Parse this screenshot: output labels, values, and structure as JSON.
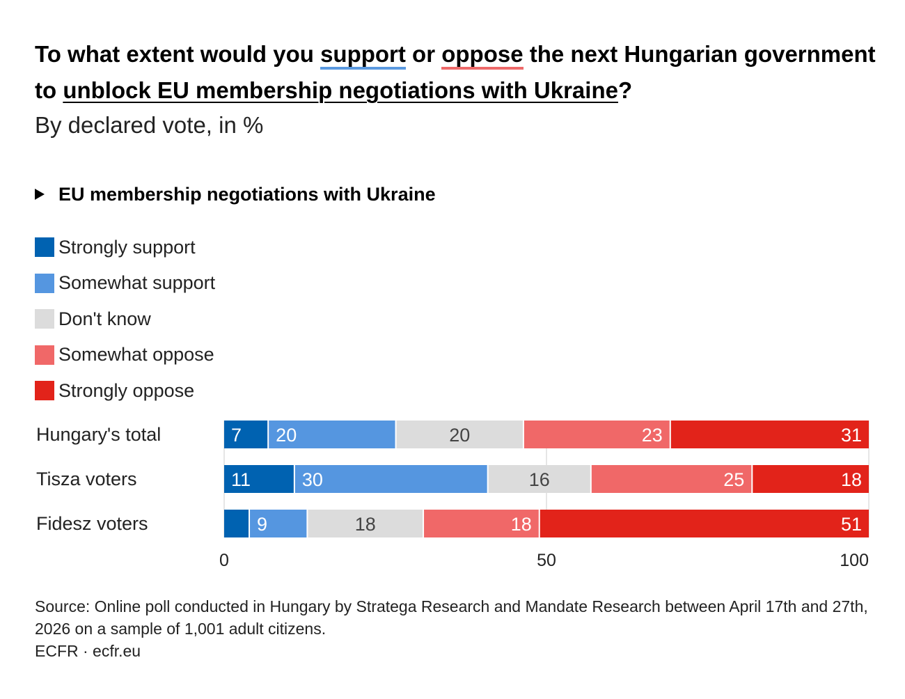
{
  "title": {
    "part1": "To what extent would you ",
    "support": "support",
    "part2": " or ",
    "oppose": "oppose",
    "part3": " the next Hungarian government to ",
    "topic": "unblock EU membership negotiations with Ukraine",
    "part4": "?"
  },
  "subtitle": "By declared vote, in %",
  "section_title": "EU membership negotiations with Ukraine",
  "source_line1": "Source: Online poll conducted in Hungary by Stratega Research and Mandate Research between April 17th and 27th, 2026 on a sample of 1,001 adult citizens.",
  "source_line2": "ECFR · ecfr.eu",
  "chart_data": {
    "type": "bar",
    "orientation": "horizontal",
    "stacked": true,
    "categories": [
      "Hungary's total",
      "Tisza voters",
      "Fidesz voters"
    ],
    "series": [
      {
        "name": "Strongly support",
        "color": "#0062b1",
        "values": [
          7,
          11,
          4
        ]
      },
      {
        "name": "Somewhat support",
        "color": "#5596e0",
        "values": [
          20,
          30,
          9
        ]
      },
      {
        "name": "Don't know",
        "color": "#dcdcdc",
        "values": [
          20,
          16,
          18
        ]
      },
      {
        "name": "Somewhat oppose",
        "color": "#f06868",
        "values": [
          23,
          25,
          18
        ]
      },
      {
        "name": "Strongly oppose",
        "color": "#e2231a",
        "values": [
          31,
          18,
          51
        ]
      }
    ],
    "data_labels": [
      [
        "7",
        "20",
        "20",
        "23",
        "31"
      ],
      [
        "11",
        "30",
        "16",
        "25",
        "18"
      ],
      [
        "",
        "9",
        "18",
        "18",
        "51"
      ]
    ],
    "xlim": [
      0,
      100
    ],
    "xticks": [
      0,
      50,
      100
    ],
    "grid": true,
    "legend": "top-left"
  }
}
